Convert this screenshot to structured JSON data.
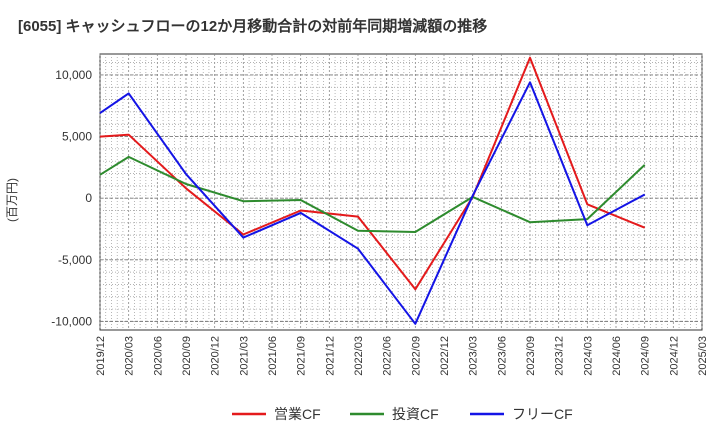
{
  "colors": {
    "operating": "#e41a1c",
    "investing": "#2e8b2e",
    "free": "#1414e6",
    "grid": "#888888",
    "text": "#333333"
  },
  "chart_data": {
    "type": "line",
    "title": "[6055]  キャッシュフローの12か月移動合計の対前年同期増減額の推移",
    "ylabel": "(百万円)",
    "xlabel": "",
    "ylim": [
      -10700,
      11700
    ],
    "yticks": [
      10000,
      5000,
      0,
      -5000,
      -10000
    ],
    "ytick_labels": [
      "10,000",
      "5,000",
      "0",
      "-5,000",
      "-10,000"
    ],
    "categories": [
      "2019/12",
      "2020/03",
      "2020/06",
      "2020/09",
      "2020/12",
      "2021/03",
      "2021/06",
      "2021/09",
      "2021/12",
      "2022/03",
      "2022/06",
      "2022/09",
      "2022/12",
      "2023/03",
      "2023/06",
      "2023/09",
      "2023/12",
      "2024/03",
      "2024/06",
      "2024/09",
      "2024/12",
      "2025/03"
    ],
    "series": [
      {
        "name": "営業CF",
        "color_key": "operating",
        "values": [
          5000,
          5150,
          null,
          800,
          null,
          -2950,
          null,
          -1000,
          null,
          -1500,
          null,
          -7400,
          null,
          100,
          null,
          11400,
          null,
          -500,
          null,
          -2400,
          null,
          null
        ]
      },
      {
        "name": "投資CF",
        "color_key": "investing",
        "values": [
          1900,
          3350,
          null,
          1150,
          null,
          -250,
          null,
          -150,
          null,
          -2650,
          null,
          -2750,
          null,
          100,
          null,
          -1950,
          null,
          -1700,
          null,
          2700,
          null,
          null
        ]
      },
      {
        "name": "フリーCF",
        "color_key": "free",
        "values": [
          6900,
          8500,
          null,
          1950,
          null,
          -3200,
          null,
          -1200,
          null,
          -4100,
          null,
          -10200,
          null,
          200,
          null,
          9400,
          null,
          -2200,
          null,
          300,
          null,
          null
        ]
      }
    ],
    "grid": true,
    "legend_position": "bottom-center"
  }
}
